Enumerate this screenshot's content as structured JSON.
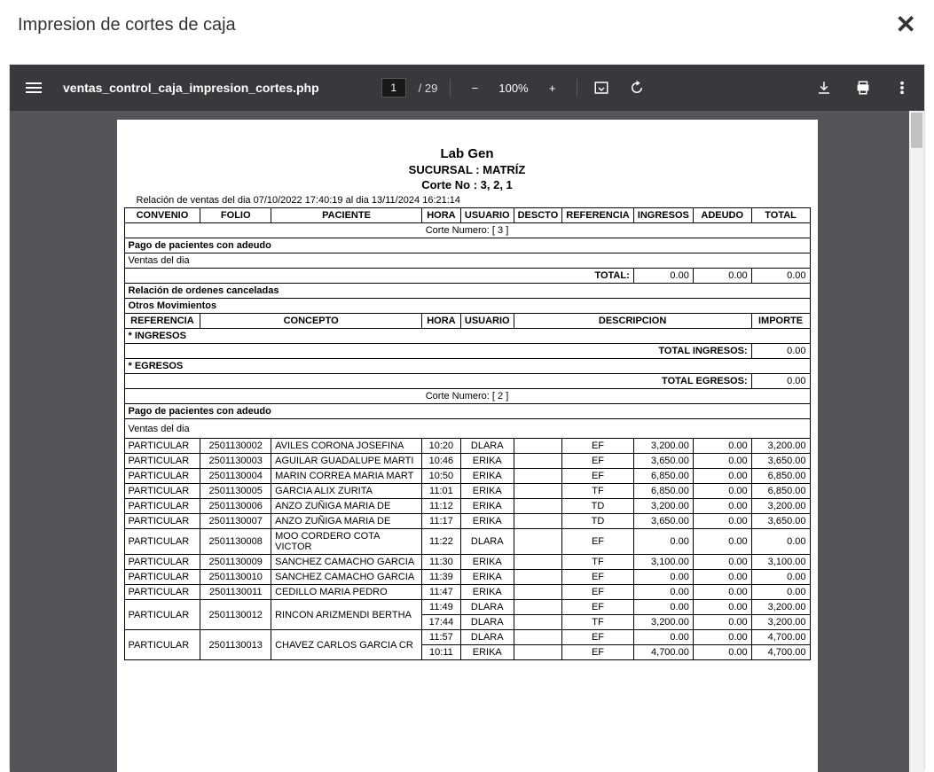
{
  "modal": {
    "title": "Impresion de cortes de caja"
  },
  "toolbar": {
    "filename": "ventas_control_caja_impresion_cortes.php",
    "page_current": "1",
    "page_total": "/ 29",
    "zoom_minus": "−",
    "zoom_pct": "100%",
    "zoom_plus": "+"
  },
  "doc": {
    "lab_title": "Lab Gen",
    "sucursal": "SUCURSAL : MATRÍZ",
    "corte_no": "Corte No : 3, 2, 1",
    "date_range": "Relación de ventas del dia 07/10/2022 17:40:19 al  dia 13/11/2024 16:21:14"
  },
  "headers": {
    "convenio": "CONVENIO",
    "folio": "FOLIO",
    "paciente": "PACIENTE",
    "hora": "HORA",
    "usuario": "USUARIO",
    "descto": "DESCTO",
    "referencia": "REFERENCIA",
    "ingresos": "INGRESOS",
    "adeudo": "ADEUDO",
    "total": "TOTAL"
  },
  "mov_headers": {
    "referencia": "REFERENCIA",
    "concepto": "CONCEPTO",
    "hora": "HORA",
    "usuario": "USUARIO",
    "descripcion": "DESCRIPCION",
    "importe": "IMPORTE"
  },
  "labels": {
    "corte3": "Corte Numero: [ 3 ]",
    "corte2": "Corte Numero: [ 2 ]",
    "pago_adeudo": "Pago de pacientes con adeudo",
    "ventas_dia": "Ventas del dia",
    "total": "TOTAL:",
    "rel_cancel": "Relación de ordenes canceladas",
    "otros_mov": "Otros Movimientos",
    "star_ingresos": "* INGRESOS",
    "star_egresos": "* EGRESOS",
    "total_ingresos": "TOTAL INGRESOS:",
    "total_egresos": "TOTAL EGRESOS:"
  },
  "totals": {
    "ingresos": "0.00",
    "adeudo": "0.00",
    "total": "0.00",
    "mov_ingresos": "0.00",
    "mov_egresos": "0.00"
  },
  "rows": [
    {
      "conv": "PARTICULAR",
      "folio": "2501130002",
      "pac": "AVILES CORONA JOSEFINA",
      "hora": "10:20",
      "usr": "DLARA",
      "ref": "EF",
      "ing": "3,200.00",
      "ade": "0.00",
      "tot": "3,200.00"
    },
    {
      "conv": "PARTICULAR",
      "folio": "2501130003",
      "pac": "AGUILAR GUADALUPE MARTI",
      "hora": "10:46",
      "usr": "ERIKA",
      "ref": "EF",
      "ing": "3,650.00",
      "ade": "0.00",
      "tot": "3,650.00"
    },
    {
      "conv": "PARTICULAR",
      "folio": "2501130004",
      "pac": "MARIN CORREA MARIA MART",
      "hora": "10:50",
      "usr": "ERIKA",
      "ref": "EF",
      "ing": "6,850.00",
      "ade": "0.00",
      "tot": "6,850.00"
    },
    {
      "conv": "PARTICULAR",
      "folio": "2501130005",
      "pac": "GARCIA ALIX ZURITA",
      "hora": "11:01",
      "usr": "ERIKA",
      "ref": "TF",
      "ing": "6,850.00",
      "ade": "0.00",
      "tot": "6,850.00"
    },
    {
      "conv": "PARTICULAR",
      "folio": "2501130006",
      "pac": "ANZO ZUÑIGA MARIA DE",
      "hora": "11:12",
      "usr": "ERIKA",
      "ref": "TD",
      "ing": "3,200.00",
      "ade": "0.00",
      "tot": "3,200.00"
    },
    {
      "conv": "PARTICULAR",
      "folio": "2501130007",
      "pac": "ANZO ZUÑIGA MARIA DE",
      "hora": "11:17",
      "usr": "ERIKA",
      "ref": "TD",
      "ing": "3,650.00",
      "ade": "0.00",
      "tot": "3,650.00"
    },
    {
      "conv": "PARTICULAR",
      "folio": "2501130008",
      "pac": "MOO CORDERO COTA VICTOR",
      "hora": "11:22",
      "usr": "DLARA",
      "ref": "EF",
      "ing": "0.00",
      "ade": "0.00",
      "tot": "0.00"
    },
    {
      "conv": "PARTICULAR",
      "folio": "2501130009",
      "pac": "SANCHEZ CAMACHO GARCIA",
      "hora": "11:30",
      "usr": "ERIKA",
      "ref": "TF",
      "ing": "3,100.00",
      "ade": "0.00",
      "tot": "3,100.00"
    },
    {
      "conv": "PARTICULAR",
      "folio": "2501130010",
      "pac": "SANCHEZ CAMACHO GARCIA",
      "hora": "11:39",
      "usr": "ERIKA",
      "ref": "EF",
      "ing": "0.00",
      "ade": "0.00",
      "tot": "0.00"
    },
    {
      "conv": "PARTICULAR",
      "folio": "2501130011",
      "pac": "CEDILLO MARIA PEDRO",
      "hora": "11:47",
      "usr": "ERIKA",
      "ref": "EF",
      "ing": "0.00",
      "ade": "0.00",
      "tot": "0.00"
    }
  ],
  "multi_rows": [
    {
      "conv": "PARTICULAR",
      "folio": "2501130012",
      "pac": "RINCON ARIZMENDI BERTHA",
      "lines": [
        {
          "hora": "11:49",
          "usr": "DLARA",
          "ref": "EF",
          "ing": "0.00",
          "ade": "0.00",
          "tot": "3,200.00"
        },
        {
          "hora": "17:44",
          "usr": "DLARA",
          "ref": "TF",
          "ing": "3,200.00",
          "ade": "0.00",
          "tot": "3,200.00"
        }
      ]
    },
    {
      "conv": "PARTICULAR",
      "folio": "2501130013",
      "pac": "CHAVEZ CARLOS GARCIA CR",
      "lines": [
        {
          "hora": "11:57",
          "usr": "DLARA",
          "ref": "EF",
          "ing": "0.00",
          "ade": "0.00",
          "tot": "4,700.00"
        },
        {
          "hora": "10:11",
          "usr": "ERIKA",
          "ref": "EF",
          "ing": "4,700.00",
          "ade": "0.00",
          "tot": "4,700.00"
        }
      ]
    }
  ],
  "style": {
    "background": "#ffffff",
    "toolbar_bg": "#38383d",
    "viewer_bg": "#54545a",
    "border_color": "#000000",
    "header_font_size": 11,
    "body_font_size": 11
  }
}
